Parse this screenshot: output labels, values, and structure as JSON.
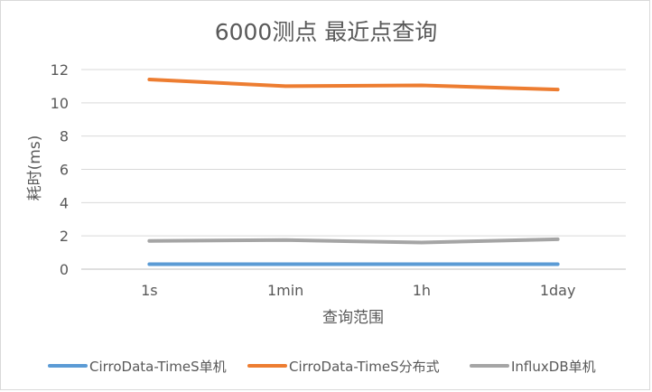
{
  "chart_data": {
    "type": "line",
    "title": "6000测点 最近点查询",
    "xlabel": "查询范围",
    "ylabel": "耗时(ms)",
    "categories": [
      "1s",
      "1min",
      "1h",
      "1day"
    ],
    "ylim": [
      0,
      12
    ],
    "yticks": [
      0,
      2,
      4,
      6,
      8,
      10,
      12
    ],
    "grid": true,
    "legend_position": "bottom",
    "series": [
      {
        "name": "CirroData-TimeS单机",
        "color": "#5b9bd5",
        "values": [
          0.3,
          0.3,
          0.3,
          0.3
        ]
      },
      {
        "name": "CirroData-TimeS分布式",
        "color": "#ed7d31",
        "values": [
          11.4,
          11.0,
          11.05,
          10.8
        ]
      },
      {
        "name": "InfluxDB单机",
        "color": "#a5a5a5",
        "values": [
          1.7,
          1.75,
          1.6,
          1.8
        ]
      }
    ]
  }
}
